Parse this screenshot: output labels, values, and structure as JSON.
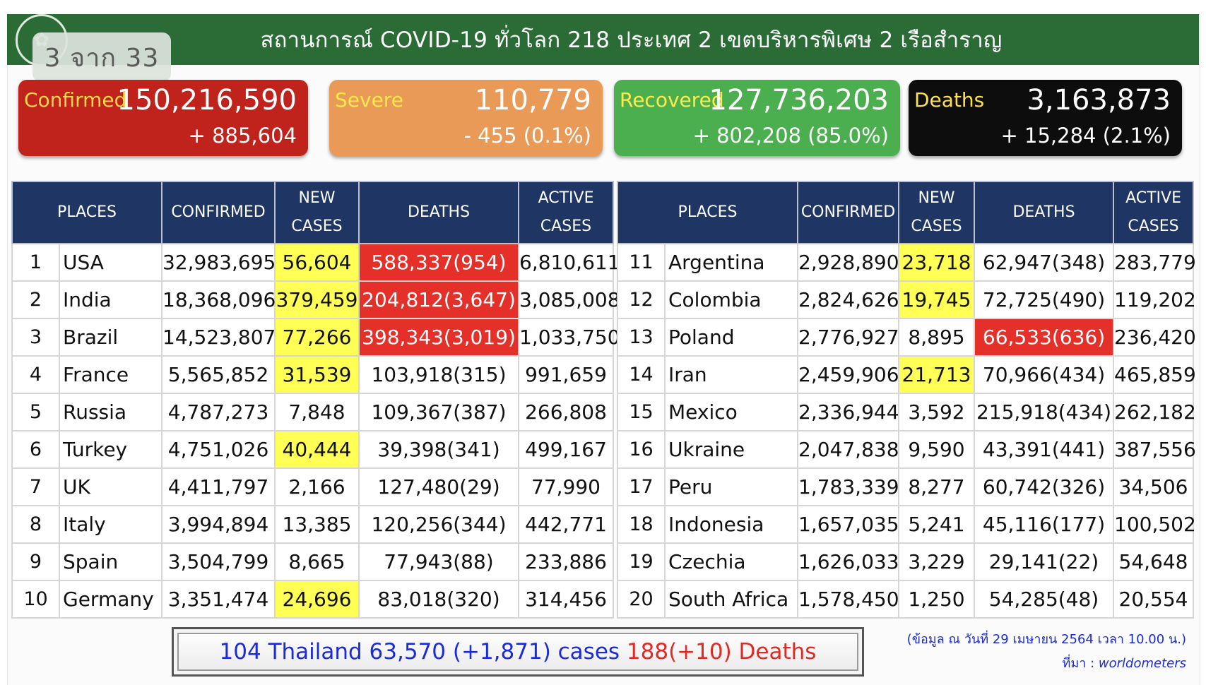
{
  "header": {
    "title": "สถานการณ์ COVID-19 ทั่วโลก 218 ประเทศ 2 เขตบริหารพิเศษ 2 เรือสำราญ",
    "page_indicator": "3 จาก 33"
  },
  "stats": {
    "confirmed": {
      "label": "Confirmed",
      "value": "150,216,590",
      "change": "+ 885,604"
    },
    "severe": {
      "label": "Severe",
      "value": "110,779",
      "change": "- 455 (0.1%)"
    },
    "recovered": {
      "label": "Recovered",
      "value": "127,736,203",
      "change": "+ 802,208 (85.0%)"
    },
    "deaths": {
      "label": "Deaths",
      "value": "3,163,873",
      "change": "+ 15,284 (2.1%)"
    }
  },
  "table_headers": {
    "places": "PLACES",
    "confirmed": "CONFIRMED",
    "new_cases_1": "NEW",
    "new_cases_2": "CASES",
    "deaths": "DEATHS",
    "active_1": "ACTIVE",
    "active_2": "CASES"
  },
  "left_rows": [
    {
      "rank": "1",
      "place": "USA",
      "confirmed": "32,983,695",
      "new_cases": "56,604",
      "deaths": "588,337(954)",
      "active": "6,810,611",
      "nc_hl": true,
      "dt_hl": true
    },
    {
      "rank": "2",
      "place": "India",
      "confirmed": "18,368,096",
      "new_cases": "379,459",
      "deaths": "204,812(3,647)",
      "active": "3,085,008",
      "nc_hl": true,
      "dt_hl": true
    },
    {
      "rank": "3",
      "place": "Brazil",
      "confirmed": "14,523,807",
      "new_cases": "77,266",
      "deaths": "398,343(3,019)",
      "active": "1,033,750",
      "nc_hl": true,
      "dt_hl": true
    },
    {
      "rank": "4",
      "place": "France",
      "confirmed": "5,565,852",
      "new_cases": "31,539",
      "deaths": "103,918(315)",
      "active": "991,659",
      "nc_hl": true,
      "dt_hl": false
    },
    {
      "rank": "5",
      "place": "Russia",
      "confirmed": "4,787,273",
      "new_cases": "7,848",
      "deaths": "109,367(387)",
      "active": "266,808",
      "nc_hl": false,
      "dt_hl": false
    },
    {
      "rank": "6",
      "place": "Turkey",
      "confirmed": "4,751,026",
      "new_cases": "40,444",
      "deaths": "39,398(341)",
      "active": "499,167",
      "nc_hl": true,
      "dt_hl": false
    },
    {
      "rank": "7",
      "place": "UK",
      "confirmed": "4,411,797",
      "new_cases": "2,166",
      "deaths": "127,480(29)",
      "active": "77,990",
      "nc_hl": false,
      "dt_hl": false
    },
    {
      "rank": "8",
      "place": "Italy",
      "confirmed": "3,994,894",
      "new_cases": "13,385",
      "deaths": "120,256(344)",
      "active": "442,771",
      "nc_hl": false,
      "dt_hl": false
    },
    {
      "rank": "9",
      "place": "Spain",
      "confirmed": "3,504,799",
      "new_cases": "8,665",
      "deaths": "77,943(88)",
      "active": "233,886",
      "nc_hl": false,
      "dt_hl": false
    },
    {
      "rank": "10",
      "place": "Germany",
      "confirmed": "3,351,474",
      "new_cases": "24,696",
      "deaths": "83,018(320)",
      "active": "314,456",
      "nc_hl": true,
      "dt_hl": false
    }
  ],
  "right_rows": [
    {
      "rank": "11",
      "place": "Argentina",
      "confirmed": "2,928,890",
      "new_cases": "23,718",
      "deaths": "62,947(348)",
      "active": "283,779",
      "nc_hl": true,
      "dt_hl": false
    },
    {
      "rank": "12",
      "place": "Colombia",
      "confirmed": "2,824,626",
      "new_cases": "19,745",
      "deaths": "72,725(490)",
      "active": "119,202",
      "nc_hl": true,
      "dt_hl": false
    },
    {
      "rank": "13",
      "place": "Poland",
      "confirmed": "2,776,927",
      "new_cases": "8,895",
      "deaths": "66,533(636)",
      "active": "236,420",
      "nc_hl": false,
      "dt_hl": true
    },
    {
      "rank": "14",
      "place": "Iran",
      "confirmed": "2,459,906",
      "new_cases": "21,713",
      "deaths": "70,966(434)",
      "active": "465,859",
      "nc_hl": true,
      "dt_hl": false
    },
    {
      "rank": "15",
      "place": "Mexico",
      "confirmed": "2,336,944",
      "new_cases": "3,592",
      "deaths": "215,918(434)",
      "active": "262,182",
      "nc_hl": false,
      "dt_hl": false
    },
    {
      "rank": "16",
      "place": "Ukraine",
      "confirmed": "2,047,838",
      "new_cases": "9,590",
      "deaths": "43,391(441)",
      "active": "387,556",
      "nc_hl": false,
      "dt_hl": false
    },
    {
      "rank": "17",
      "place": "Peru",
      "confirmed": "1,783,339",
      "new_cases": "8,277",
      "deaths": "60,742(326)",
      "active": "34,506",
      "nc_hl": false,
      "dt_hl": false
    },
    {
      "rank": "18",
      "place": "Indonesia",
      "confirmed": "1,657,035",
      "new_cases": "5,241",
      "deaths": "45,116(177)",
      "active": "100,502",
      "nc_hl": false,
      "dt_hl": false
    },
    {
      "rank": "19",
      "place": "Czechia",
      "confirmed": "1,626,033",
      "new_cases": "3,229",
      "deaths": "29,141(22)",
      "active": "54,648",
      "nc_hl": false,
      "dt_hl": false
    },
    {
      "rank": "20",
      "place": "South Africa",
      "confirmed": "1,578,450",
      "new_cases": "1,250",
      "deaths": "54,285(48)",
      "active": "20,554",
      "nc_hl": false,
      "dt_hl": false
    }
  ],
  "footer": {
    "thailand_cases": "104 Thailand 63,570 (+1,871) cases",
    "thailand_deaths": "188(+10) Deaths"
  },
  "note": {
    "date": "(ข้อมูล ณ วันที่ 29 เมษายน 2564 เวลา 10.00 น.)",
    "source_label": "ที่มา :",
    "source_name": "worldometers"
  }
}
